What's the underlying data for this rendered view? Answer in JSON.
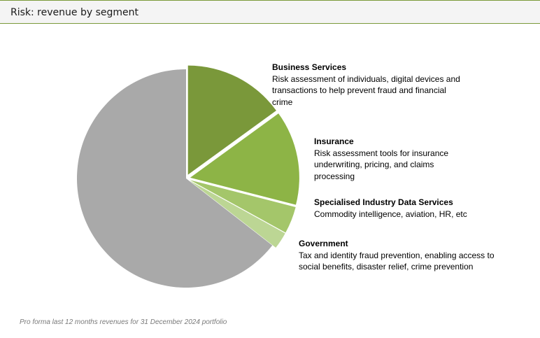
{
  "header": {
    "title": "Risk: revenue by segment"
  },
  "footnote": "Pro forma last 12 months revenues for 31 December 2024 portfolio",
  "colors": {
    "header_border": "#7a9a3a",
    "business_services": "#7a983a",
    "insurance": "#8db446",
    "specialised": "#a4c66a",
    "government": "#bcd694",
    "other": "#a9a9a9"
  },
  "chart_data": {
    "type": "pie",
    "title": "",
    "slices": [
      {
        "name": "Business Services",
        "value": 15,
        "color": "#7a983a",
        "description": "Risk assessment of individuals, digital devices and transactions to help prevent fraud and financial crime"
      },
      {
        "name": "Insurance",
        "value": 14,
        "color": "#8db446",
        "description": "Risk assessment tools for insurance underwriting, pricing, and claims processing"
      },
      {
        "name": "Specialised Industry Data Services",
        "value": 4,
        "color": "#a4c66a",
        "description": "Commodity intelligence, aviation, HR, etc"
      },
      {
        "name": "Government",
        "value": 2.5,
        "color": "#bcd694",
        "description": "Tax and identity fraud prevention, enabling access to social benefits, disaster relief, crime prevention"
      },
      {
        "name": "",
        "value": 64.5,
        "color": "#a9a9a9",
        "description": ""
      }
    ],
    "start_angle": "top (12 o'clock)",
    "direction": "clockwise",
    "exploded_slices": [
      "Business Services",
      "Insurance",
      "Specialised Industry Data Services",
      "Government"
    ],
    "legend": "callout labels to the right"
  }
}
